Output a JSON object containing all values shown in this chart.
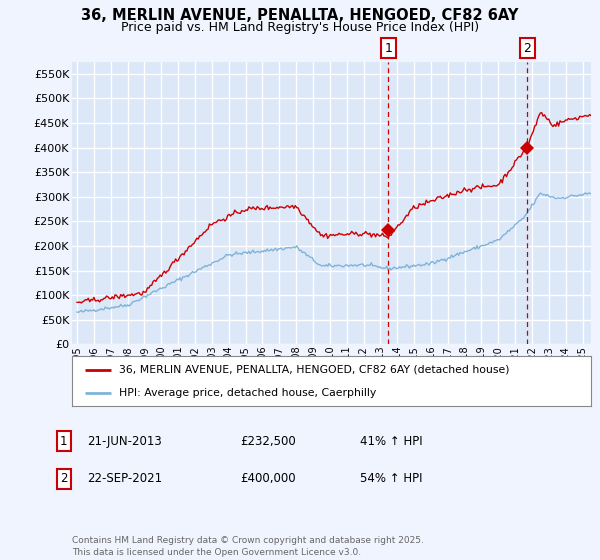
{
  "title_line1": "36, MERLIN AVENUE, PENALLTA, HENGOED, CF82 6AY",
  "title_line2": "Price paid vs. HM Land Registry's House Price Index (HPI)",
  "ylim": [
    0,
    575000
  ],
  "yticks": [
    0,
    50000,
    100000,
    150000,
    200000,
    250000,
    300000,
    350000,
    400000,
    450000,
    500000,
    550000
  ],
  "ytick_labels": [
    "£0",
    "£50K",
    "£100K",
    "£150K",
    "£200K",
    "£250K",
    "£300K",
    "£350K",
    "£400K",
    "£450K",
    "£500K",
    "£550K"
  ],
  "xmin_year": 1995,
  "xmax_year": 2025,
  "xtick_years": [
    1995,
    1996,
    1997,
    1998,
    1999,
    2000,
    2001,
    2002,
    2003,
    2004,
    2005,
    2006,
    2007,
    2008,
    2009,
    2010,
    2011,
    2012,
    2013,
    2014,
    2015,
    2016,
    2017,
    2018,
    2019,
    2020,
    2021,
    2022,
    2023,
    2024,
    2025
  ],
  "bg_color": "#f0f4ff",
  "plot_bg_color": "#dce8f8",
  "grid_color": "#ffffff",
  "red_color": "#cc0000",
  "blue_color": "#7fb3d8",
  "marker1_year": 2013.47,
  "marker1_value": 232500,
  "marker2_year": 2021.72,
  "marker2_value": 400000,
  "vline1_year": 2013.47,
  "vline2_year": 2021.72,
  "legend_label_red": "36, MERLIN AVENUE, PENALLTA, HENGOED, CF82 6AY (detached house)",
  "legend_label_blue": "HPI: Average price, detached house, Caerphilly",
  "table_row1": [
    "1",
    "21-JUN-2013",
    "£232,500",
    "41% ↑ HPI"
  ],
  "table_row2": [
    "2",
    "22-SEP-2021",
    "£400,000",
    "54% ↑ HPI"
  ],
  "footer_text": "Contains HM Land Registry data © Crown copyright and database right 2025.\nThis data is licensed under the Open Government Licence v3.0."
}
